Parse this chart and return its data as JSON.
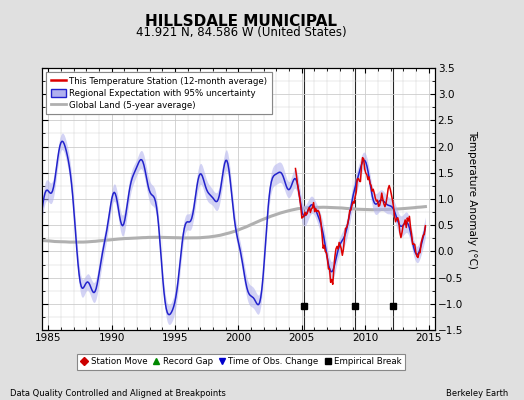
{
  "title": "HILLSDALE MUNICIPAL",
  "subtitle": "41.921 N, 84.586 W (United States)",
  "ylabel": "Temperature Anomaly (°C)",
  "xlabel_left": "Data Quality Controlled and Aligned at Breakpoints",
  "xlabel_right": "Berkeley Earth",
  "xlim": [
    1984.5,
    2015.5
  ],
  "ylim": [
    -1.5,
    3.5
  ],
  "yticks": [
    -1.5,
    -1.0,
    -0.5,
    0.0,
    0.5,
    1.0,
    1.5,
    2.0,
    2.5,
    3.0,
    3.5
  ],
  "xticks": [
    1985,
    1990,
    1995,
    2000,
    2005,
    2010,
    2015
  ],
  "background_color": "#e0e0e0",
  "plot_bg_color": "#ffffff",
  "grid_color": "#cccccc",
  "red_line_color": "#dd0000",
  "blue_line_color": "#2222cc",
  "blue_fill_color": "#b0b0ee",
  "gray_line_color": "#b0b0b0",
  "empirical_break_years": [
    2005.2,
    2009.2,
    2012.2
  ],
  "vertical_line_years": [
    2005.2,
    2009.2,
    2012.2
  ],
  "legend_labels": [
    "This Temperature Station (12-month average)",
    "Regional Expectation with 95% uncertainty",
    "Global Land (5-year average)"
  ],
  "legend2_labels": [
    "Station Move",
    "Record Gap",
    "Time of Obs. Change",
    "Empirical Break"
  ]
}
